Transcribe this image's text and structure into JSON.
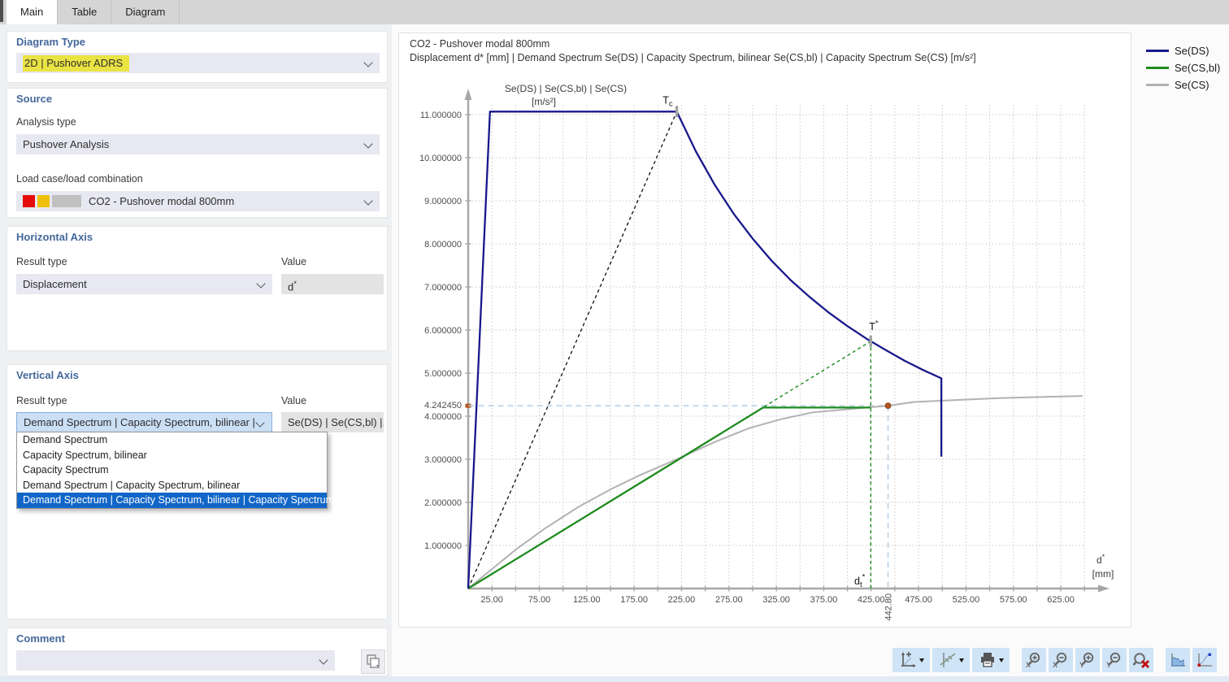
{
  "tabs": [
    {
      "label": "Main",
      "active": true
    },
    {
      "label": "Table",
      "active": false
    },
    {
      "label": "Diagram",
      "active": false
    }
  ],
  "panels": {
    "diagram_type": {
      "title": "Diagram Type",
      "value": "2D | Pushover ADRS",
      "highlight_color": "#e9e344"
    },
    "source": {
      "title": "Source",
      "analysis_type_label": "Analysis type",
      "analysis_type_value": "Pushover Analysis",
      "load_case_label": "Load case/load combination",
      "load_case_value": "CO2 - Pushover modal 800mm",
      "load_case_swatches": [
        "#e60b0b",
        "#eec00c",
        "#c0c0c0"
      ]
    },
    "horizontal_axis": {
      "title": "Horizontal Axis",
      "result_type_label": "Result type",
      "result_type_value": "Displacement",
      "value_label": "Value",
      "value_base": "d",
      "value_sup": "*"
    },
    "vertical_axis": {
      "title": "Vertical Axis",
      "result_type_label": "Result type",
      "result_type_value": "Demand Spectrum | Capacity Spectrum, bilinear |",
      "value_label": "Value",
      "value_text": "Se(DS) | Se(CS,bl) |...",
      "dropdown_options": [
        "Demand Spectrum",
        "Capacity Spectrum, bilinear",
        "Capacity Spectrum",
        "Demand Spectrum | Capacity Spectrum, bilinear",
        "Demand Spectrum | Capacity Spectrum, bilinear | Capacity Spectrum"
      ],
      "selected_option_index": 4,
      "highlight_color": "#1266c8"
    },
    "comment": {
      "title": "Comment",
      "value": ""
    }
  },
  "chart": {
    "title": "CO2 - Pushover modal 800mm",
    "subtitle": "Displacement d* [mm] | Demand Spectrum Se(DS) | Capacity Spectrum, bilinear Se(CS,bl) | Capacity Spectrum Se(CS) [m/s²]"
  },
  "legend": [
    {
      "label": "Se(DS)",
      "color": "#18188c"
    },
    {
      "label": "Se(CS,bl)",
      "color": "#1e8b1e"
    },
    {
      "label": "Se(CS)",
      "color": "#b2b2b2"
    }
  ],
  "chart_data": {
    "type": "line",
    "title": "CO2 - Pushover modal 800mm",
    "xlabel": "d* [mm]",
    "ylabel": "Se(DS) | Se(CS,bl) | Se(CS) [m/s²]",
    "x_axis": {
      "min": 0,
      "max": 650,
      "grid_step": 25,
      "label_step": 50,
      "first_label": 25,
      "last_label": 625,
      "unit": "mm"
    },
    "y_axis": {
      "min": 0,
      "max": 11,
      "grid_step": 1,
      "label_decimals": 6,
      "unit": "m/s²"
    },
    "axis_titles": {
      "y_line1": "Se(DS) | Se(CS,bl) | Se(CS)",
      "y_line2": "[m/s²]",
      "x_base": "d",
      "x_sup": "*",
      "x_line2": "[mm]"
    },
    "series": [
      {
        "name": "period-line-Tc",
        "color": "#1b1b1b",
        "style": "dashed",
        "points": [
          [
            0,
            0
          ],
          [
            220,
            11.07
          ]
        ]
      },
      {
        "name": "period-line-T-star",
        "color": "#1e8b1e",
        "style": "dashed",
        "points": [
          [
            0,
            0
          ],
          [
            424.6,
            5.74
          ]
        ]
      },
      {
        "name": "dt-star-vertical",
        "color": "#1e8b1e",
        "style": "dashed",
        "points": [
          [
            424.6,
            5.74
          ],
          [
            424.6,
            0
          ]
        ]
      },
      {
        "name": "Se(CS)",
        "color": "#b2b2b2",
        "style": "solid",
        "points": [
          [
            0,
            0
          ],
          [
            25,
            0.45
          ],
          [
            50,
            0.9
          ],
          [
            80,
            1.38
          ],
          [
            116,
            1.89
          ],
          [
            150,
            2.3
          ],
          [
            180,
            2.62
          ],
          [
            220,
            3.0
          ],
          [
            260,
            3.4
          ],
          [
            296,
            3.72
          ],
          [
            330,
            3.93
          ],
          [
            364,
            4.09
          ],
          [
            400,
            4.16
          ],
          [
            425,
            4.21
          ],
          [
            443,
            4.243
          ],
          [
            470,
            4.33
          ],
          [
            500,
            4.36
          ],
          [
            560,
            4.42
          ],
          [
            648,
            4.47
          ]
        ]
      },
      {
        "name": "Se(CS,bl)",
        "color": "#1e8b1e",
        "style": "solid",
        "points": [
          [
            0,
            0
          ],
          [
            311,
            4.2
          ],
          [
            424.6,
            4.2
          ]
        ]
      },
      {
        "name": "Se(DS)",
        "color": "#18188c",
        "style": "solid",
        "points": [
          [
            0,
            0
          ],
          [
            23,
            11.07
          ],
          [
            220,
            11.07
          ],
          [
            240,
            10.15
          ],
          [
            260,
            9.37
          ],
          [
            280,
            8.7
          ],
          [
            300,
            8.12
          ],
          [
            320,
            7.61
          ],
          [
            340,
            7.16
          ],
          [
            360,
            6.77
          ],
          [
            380,
            6.41
          ],
          [
            400,
            6.09
          ],
          [
            420,
            5.8
          ],
          [
            440,
            5.54
          ],
          [
            460,
            5.29
          ],
          [
            480,
            5.07
          ],
          [
            499,
            4.88
          ],
          [
            499,
            3.06
          ]
        ]
      }
    ],
    "performance_point": {
      "x": 442.8,
      "y": 4.24245,
      "x_label": "442.80",
      "y_label": "4.242450",
      "color": "#b4571e",
      "guide_color": "#b7d2ea"
    },
    "annotations": [
      {
        "base": "T",
        "sub": "c",
        "sup": "",
        "x": 220,
        "y": 11.07
      },
      {
        "base": "T",
        "sub": "",
        "sup": "*",
        "x": 424.6,
        "y": 5.74
      },
      {
        "base": "d",
        "sub": "t",
        "sup": "*",
        "x": 424.6,
        "y": 0
      }
    ],
    "legend_position": "right",
    "grid": true
  },
  "toolbar": {
    "icons": [
      "axes-plus-icon",
      "trend-line-icon",
      "printer-icon",
      "zoom-in-x-icon",
      "zoom-out-x-icon",
      "zoom-in-y-icon",
      "zoom-out-y-icon",
      "zoom-reset-icon",
      "area-chart-icon",
      "point-chart-icon"
    ]
  }
}
